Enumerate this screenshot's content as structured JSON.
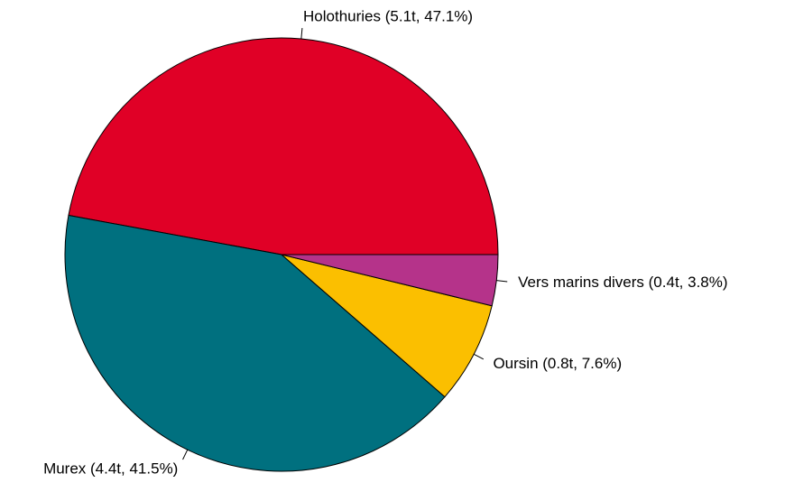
{
  "chart_data": {
    "type": "pie",
    "categories": [
      "Holothuries (5.1t, 47.1%)",
      "Murex (4.4t, 41.5%)",
      "Oursin (0.8t, 7.6%)",
      "Vers marins divers (0.4t, 3.8%)"
    ],
    "values": [
      47.1,
      41.5,
      7.6,
      3.8
    ],
    "colors": [
      "#e00026",
      "#00707f",
      "#fbbf00",
      "#b5338a"
    ]
  }
}
